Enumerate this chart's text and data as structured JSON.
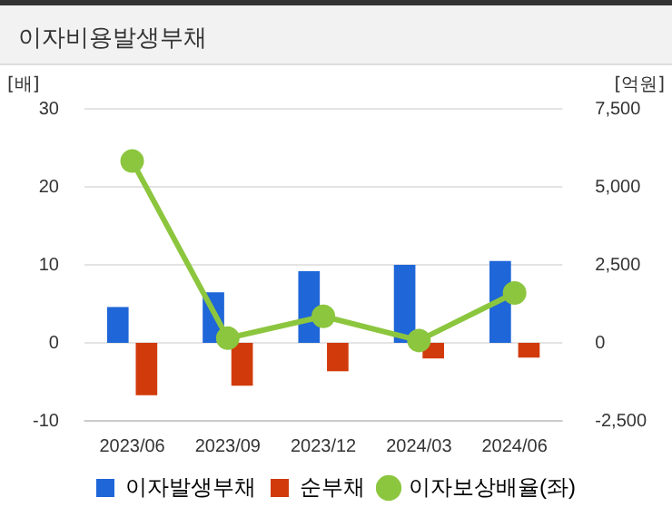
{
  "chart_data": {
    "type": "bar",
    "title": "이자비용발생부채",
    "ylabel": "[배]",
    "y2label": "[억원]",
    "categories": [
      "2023/06",
      "2023/09",
      "2023/12",
      "2024/03",
      "2024/06"
    ],
    "series": [
      {
        "name": "이자발생부채",
        "color": "#1f66d8",
        "axis": "y2",
        "values": [
          1150,
          1620,
          2300,
          2500,
          2620
        ]
      },
      {
        "name": "순부채",
        "color": "#d13a0a",
        "axis": "y2",
        "values": [
          -1680,
          -1370,
          -910,
          -500,
          -470
        ]
      },
      {
        "name": "이자보상배율(좌)",
        "type": "line",
        "color": "#8cc63e",
        "marker": "circle",
        "values": [
          23.3,
          0.6,
          3.4,
          0.3,
          6.4
        ]
      }
    ],
    "ylim": [
      -10,
      30
    ],
    "yticks": [
      -10,
      0,
      10,
      20,
      30
    ],
    "y2lim": [
      -2500,
      7500
    ],
    "y2ticks": [
      {
        "value": -2500,
        "label": "-2,500"
      },
      0,
      {
        "value": 2500,
        "label": "2,500"
      },
      {
        "value": 5000,
        "label": "5,000"
      },
      {
        "value": 7500,
        "label": "7,500"
      }
    ],
    "grid": "y",
    "legend": "bottom"
  }
}
